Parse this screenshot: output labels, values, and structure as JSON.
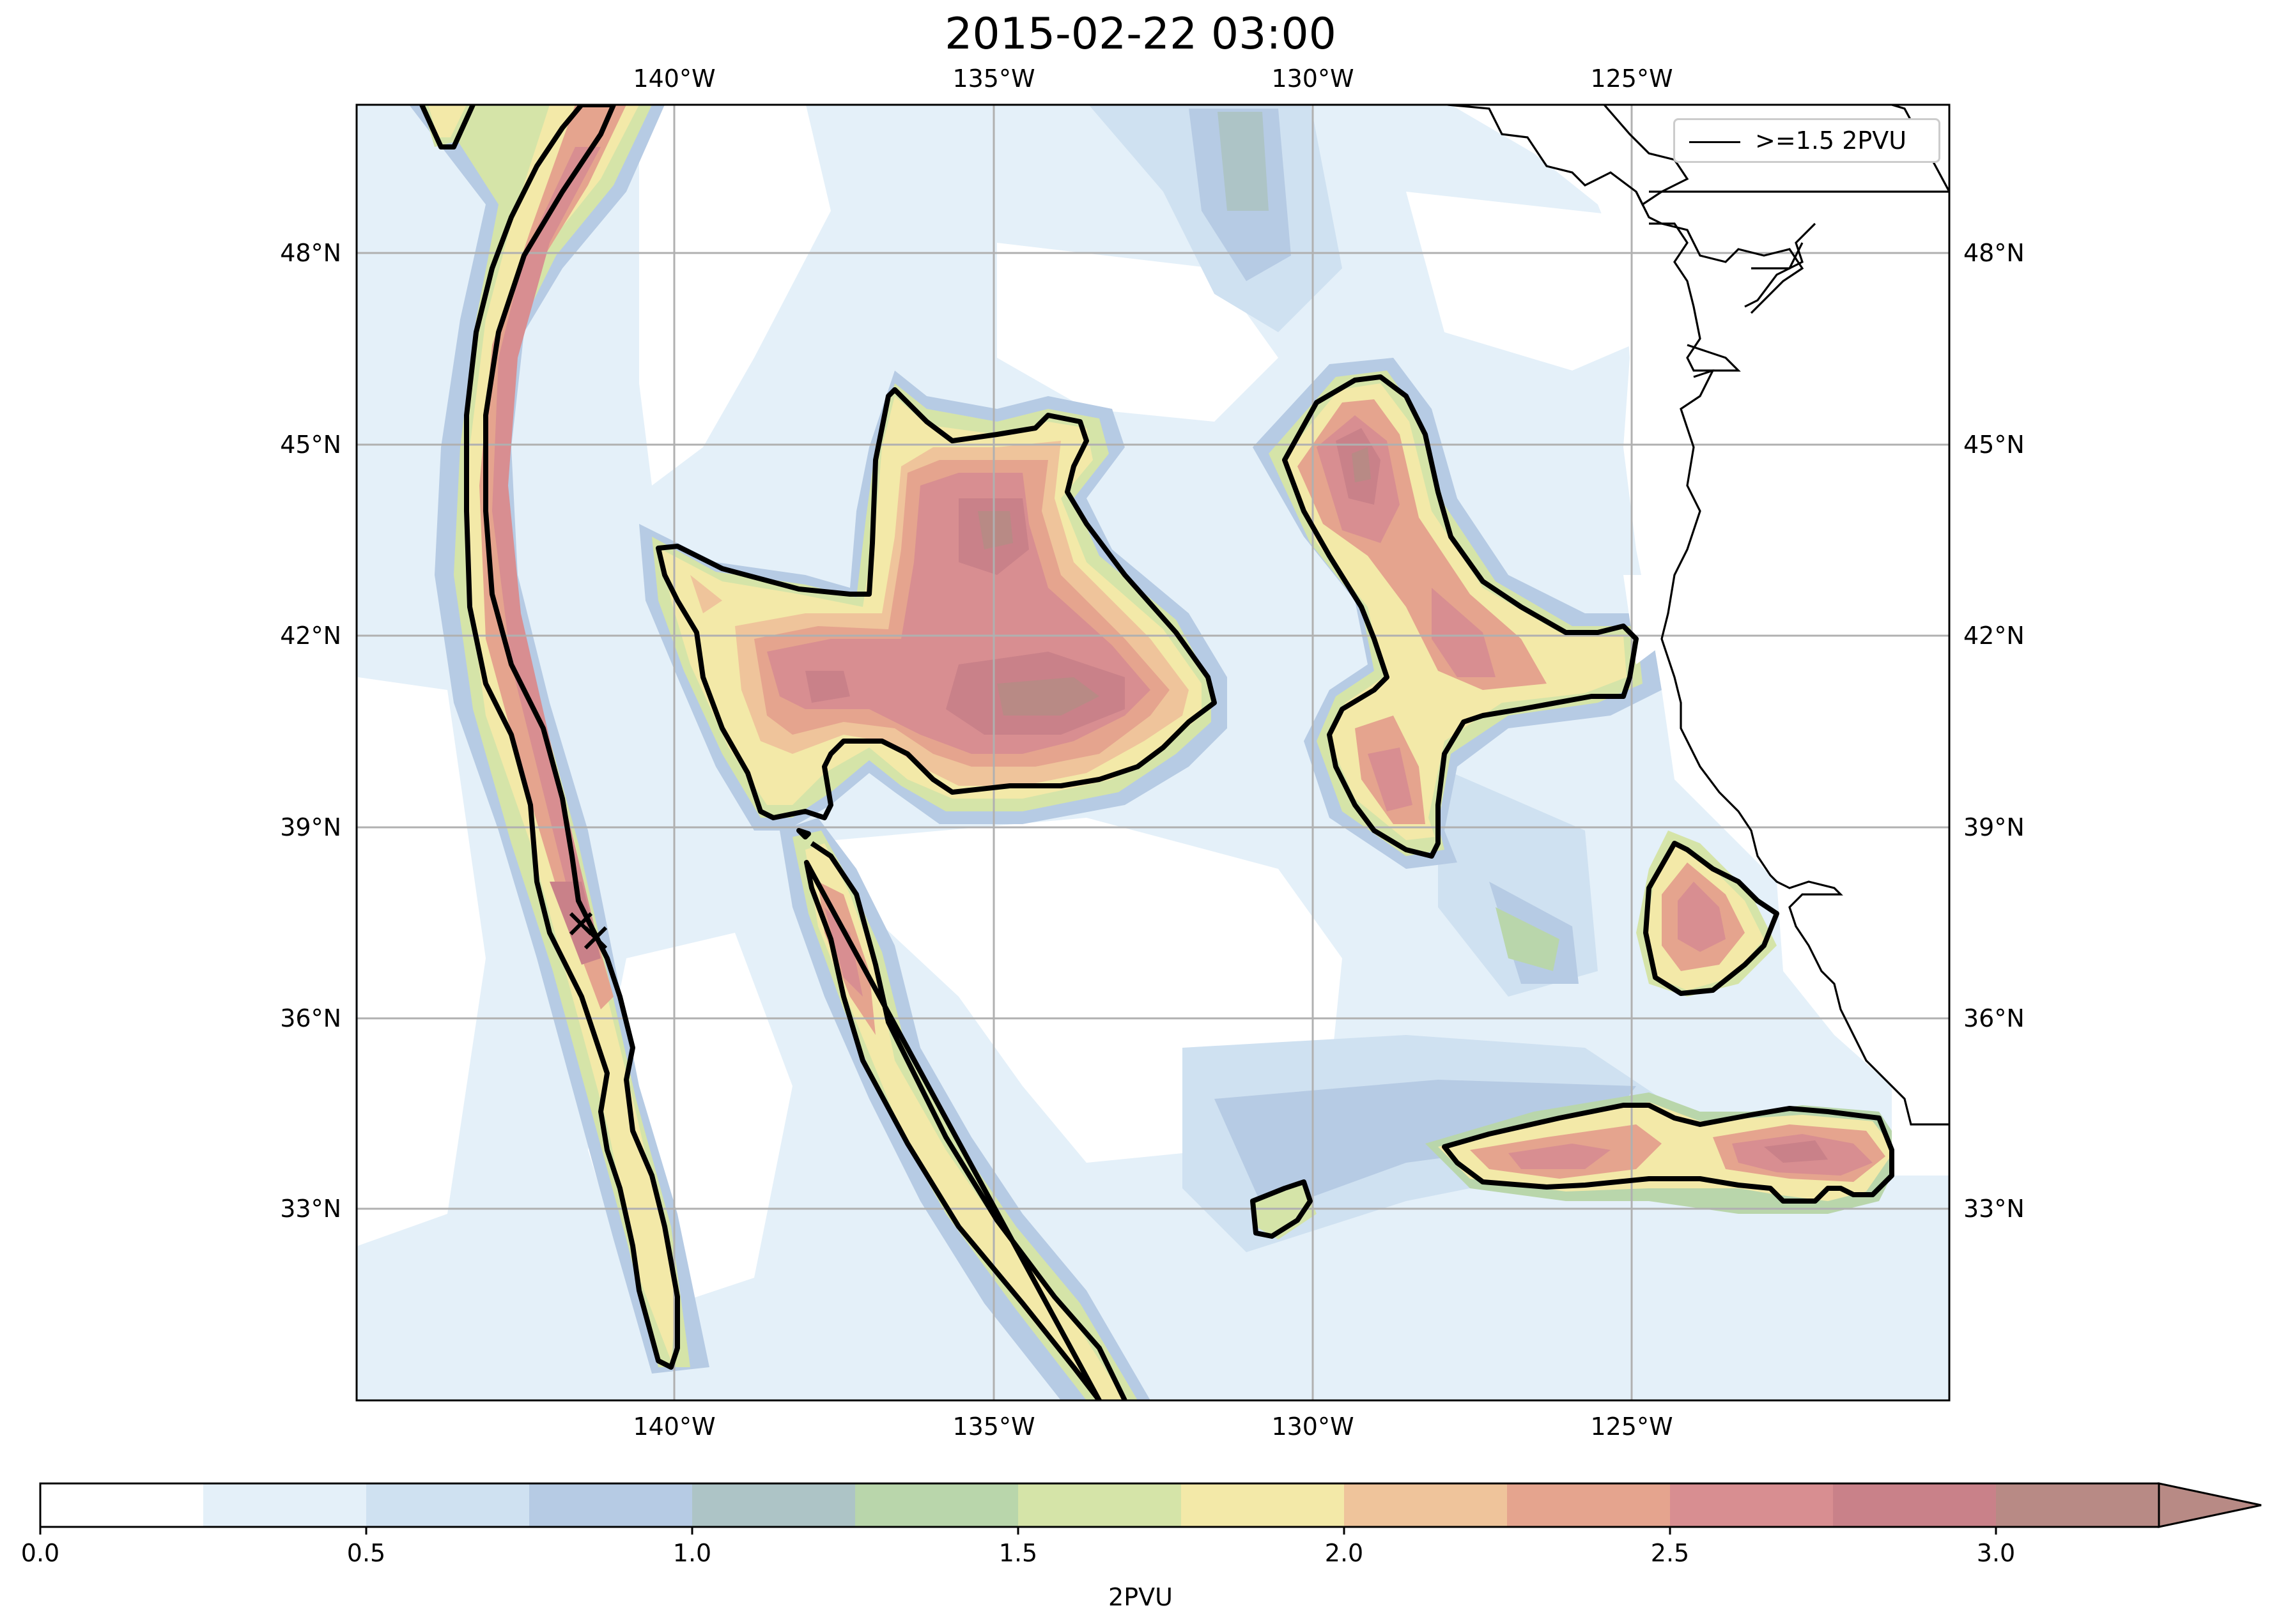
{
  "title": "2015-02-22 03:00",
  "legend": {
    "label": ">=1.5 2PVU"
  },
  "axes": {
    "lon_ticks": [
      "140°W",
      "135°W",
      "130°W",
      "125°W"
    ],
    "lat_ticks": [
      "48°N",
      "45°N",
      "42°N",
      "39°N",
      "36°N",
      "33°N"
    ]
  },
  "colorbar": {
    "label": "2PVU",
    "tick_labels": [
      "0.0",
      "0.5",
      "1.0",
      "1.5",
      "2.0",
      "2.5",
      "3.0"
    ],
    "colors": [
      "#ffffff",
      "#e4f0f9",
      "#cfe1f1",
      "#b6cbe4",
      "#adc4c6",
      "#b9d6ab",
      "#d5e4a8",
      "#f3e9a8",
      "#efc49b",
      "#e5a48e",
      "#d88e91",
      "#c98189",
      "#b88a85"
    ],
    "extend": "max"
  },
  "contour_level": 1.5,
  "markers": [
    "x",
    "x"
  ]
}
